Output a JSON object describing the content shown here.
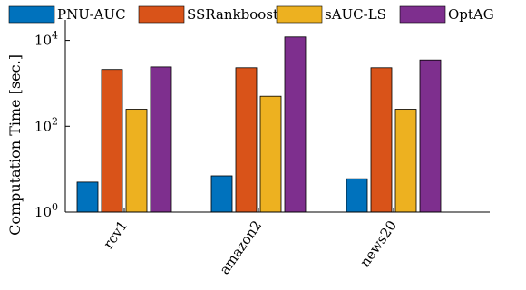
{
  "chart_data": {
    "type": "bar",
    "categories": [
      "rcv1",
      "amazon2",
      "news20"
    ],
    "series": [
      {
        "name": "PNU-AUC",
        "color": "#0072BD",
        "values": [
          5,
          7,
          6
        ]
      },
      {
        "name": "SSRankboost",
        "color": "#D95319",
        "values": [
          2100,
          2300,
          2300
        ]
      },
      {
        "name": "sAUC-LS",
        "color": "#EDB120",
        "values": [
          250,
          500,
          250
        ]
      },
      {
        "name": "OptAG",
        "color": "#7E2F8E",
        "values": [
          2400,
          12000,
          3500
        ]
      }
    ],
    "ylabel": "Computation Time [sec.]",
    "xlabel": "",
    "title": "",
    "yscale": "log",
    "ylim": [
      1,
      30000
    ],
    "yticks": [
      {
        "value": 1,
        "base": "10",
        "exp": "0"
      },
      {
        "value": 100,
        "base": "10",
        "exp": "2"
      },
      {
        "value": 10000,
        "base": "10",
        "exp": "4"
      }
    ],
    "grid": false,
    "legend_position": "top"
  }
}
